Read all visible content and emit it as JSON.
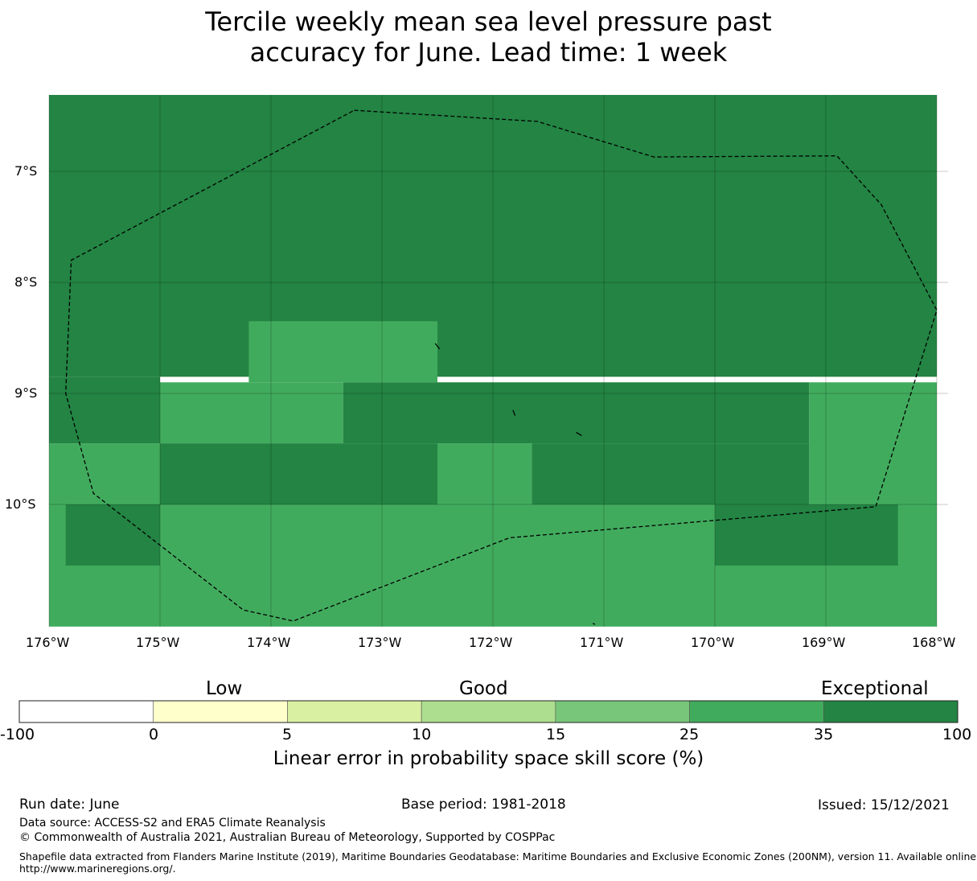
{
  "title": {
    "line1": "Tercile weekly mean sea level pressure past",
    "line2": "accuracy for June. Lead time: 1 week"
  },
  "map": {
    "lat_labels": [
      "7°S",
      "8°S",
      "9°S",
      "10°S"
    ],
    "lon_labels": [
      "176°W",
      "175°W",
      "174°W",
      "173°W",
      "172°W",
      "171°W",
      "170°W",
      "169°W",
      "168°W"
    ],
    "grid_cells": [
      {
        "lon": [
          -176.0,
          -168.0
        ],
        "lat": [
          -6.3,
          -8.85
        ],
        "category": "35-100"
      },
      {
        "lon": [
          -174.2,
          -172.5
        ],
        "lat": [
          -8.35,
          -8.9
        ],
        "category": "25-35"
      },
      {
        "lon": [
          -176.0,
          -175.0
        ],
        "lat": [
          -8.85,
          -9.45
        ],
        "category": "35-100"
      },
      {
        "lon": [
          -175.0,
          -173.35
        ],
        "lat": [
          -8.9,
          -9.45
        ],
        "category": "25-35"
      },
      {
        "lon": [
          -173.35,
          -169.15
        ],
        "lat": [
          -8.9,
          -9.45
        ],
        "category": "35-100"
      },
      {
        "lon": [
          -169.15,
          -168.0
        ],
        "lat": [
          -8.9,
          -10.0
        ],
        "category": "25-35"
      },
      {
        "lon": [
          -176.0,
          -175.0
        ],
        "lat": [
          -9.45,
          -10.0
        ],
        "category": "25-35"
      },
      {
        "lon": [
          -175.0,
          -172.5
        ],
        "lat": [
          -9.45,
          -10.0
        ],
        "category": "35-100"
      },
      {
        "lon": [
          -172.5,
          -171.65
        ],
        "lat": [
          -9.45,
          -10.0
        ],
        "category": "25-35"
      },
      {
        "lon": [
          -171.65,
          -169.15
        ],
        "lat": [
          -9.45,
          -10.0
        ],
        "category": "35-100"
      },
      {
        "lon": [
          -176.0,
          -168.0
        ],
        "lat": [
          -10.0,
          -11.1
        ],
        "category": "25-35"
      },
      {
        "lon": [
          -175.85,
          -175.0
        ],
        "lat": [
          -10.0,
          -10.55
        ],
        "category": "35-100"
      },
      {
        "lon": [
          -170.0,
          -168.35
        ],
        "lat": [
          -10.0,
          -10.55
        ],
        "category": "35-100"
      }
    ],
    "eez_boundary": [
      [
        -173.25,
        -6.45
      ],
      [
        -171.6,
        -6.55
      ],
      [
        -170.55,
        -6.87
      ],
      [
        -168.9,
        -6.86
      ],
      [
        -168.5,
        -7.3
      ],
      [
        -168.0,
        -8.25
      ],
      [
        -168.55,
        -10.02
      ],
      [
        -171.85,
        -10.3
      ],
      [
        -173.8,
        -11.05
      ],
      [
        -174.25,
        -10.95
      ],
      [
        -175.6,
        -9.9
      ],
      [
        -175.85,
        -9.0
      ],
      [
        -175.8,
        -7.8
      ],
      [
        -173.25,
        -6.45
      ]
    ],
    "islands": [
      [
        [
          -172.52,
          -8.55
        ],
        [
          -172.48,
          -8.6
        ]
      ],
      [
        [
          -171.82,
          -9.15
        ],
        [
          -171.8,
          -9.2
        ]
      ],
      [
        [
          -171.25,
          -9.35
        ],
        [
          -171.2,
          -9.38
        ]
      ],
      [
        [
          -171.1,
          -11.07
        ],
        [
          -171.08,
          -11.08
        ]
      ]
    ]
  },
  "colorbar": {
    "categories": [
      "Low",
      "Good",
      "Exceptional"
    ],
    "ticks": [
      "-100",
      "0",
      "5",
      "10",
      "15",
      "25",
      "35",
      "100"
    ],
    "colors": [
      "#ffffff",
      "#ffffcc",
      "#d9f0a3",
      "#addd8e",
      "#78c679",
      "#41ab5d",
      "#238443"
    ],
    "label": "Linear error in probability space skill score (%)"
  },
  "footer": {
    "run_date": "Run date: June",
    "base_period": "Base period: 1981-2018",
    "issued": "Issued: 15/12/2021",
    "data_source": "Data source: ACCESS-S2 and ERA5 Climate Reanalysis",
    "copyright": "© Commonwealth of Australia 2021, Australian Bureau of Meteorology, Supported by COSPPac",
    "shapefile_line1": "Shapefile data extracted from Flanders Marine Institute (2019), Maritime Boundaries Geodatabase: Maritime Boundaries and Exclusive Economic Zones (200NM), version 11. Available online at",
    "shapefile_line2": "http://www.marineregions.org/."
  },
  "category_colors": {
    "25-35": "#41ab5d",
    "35-100": "#238443"
  }
}
